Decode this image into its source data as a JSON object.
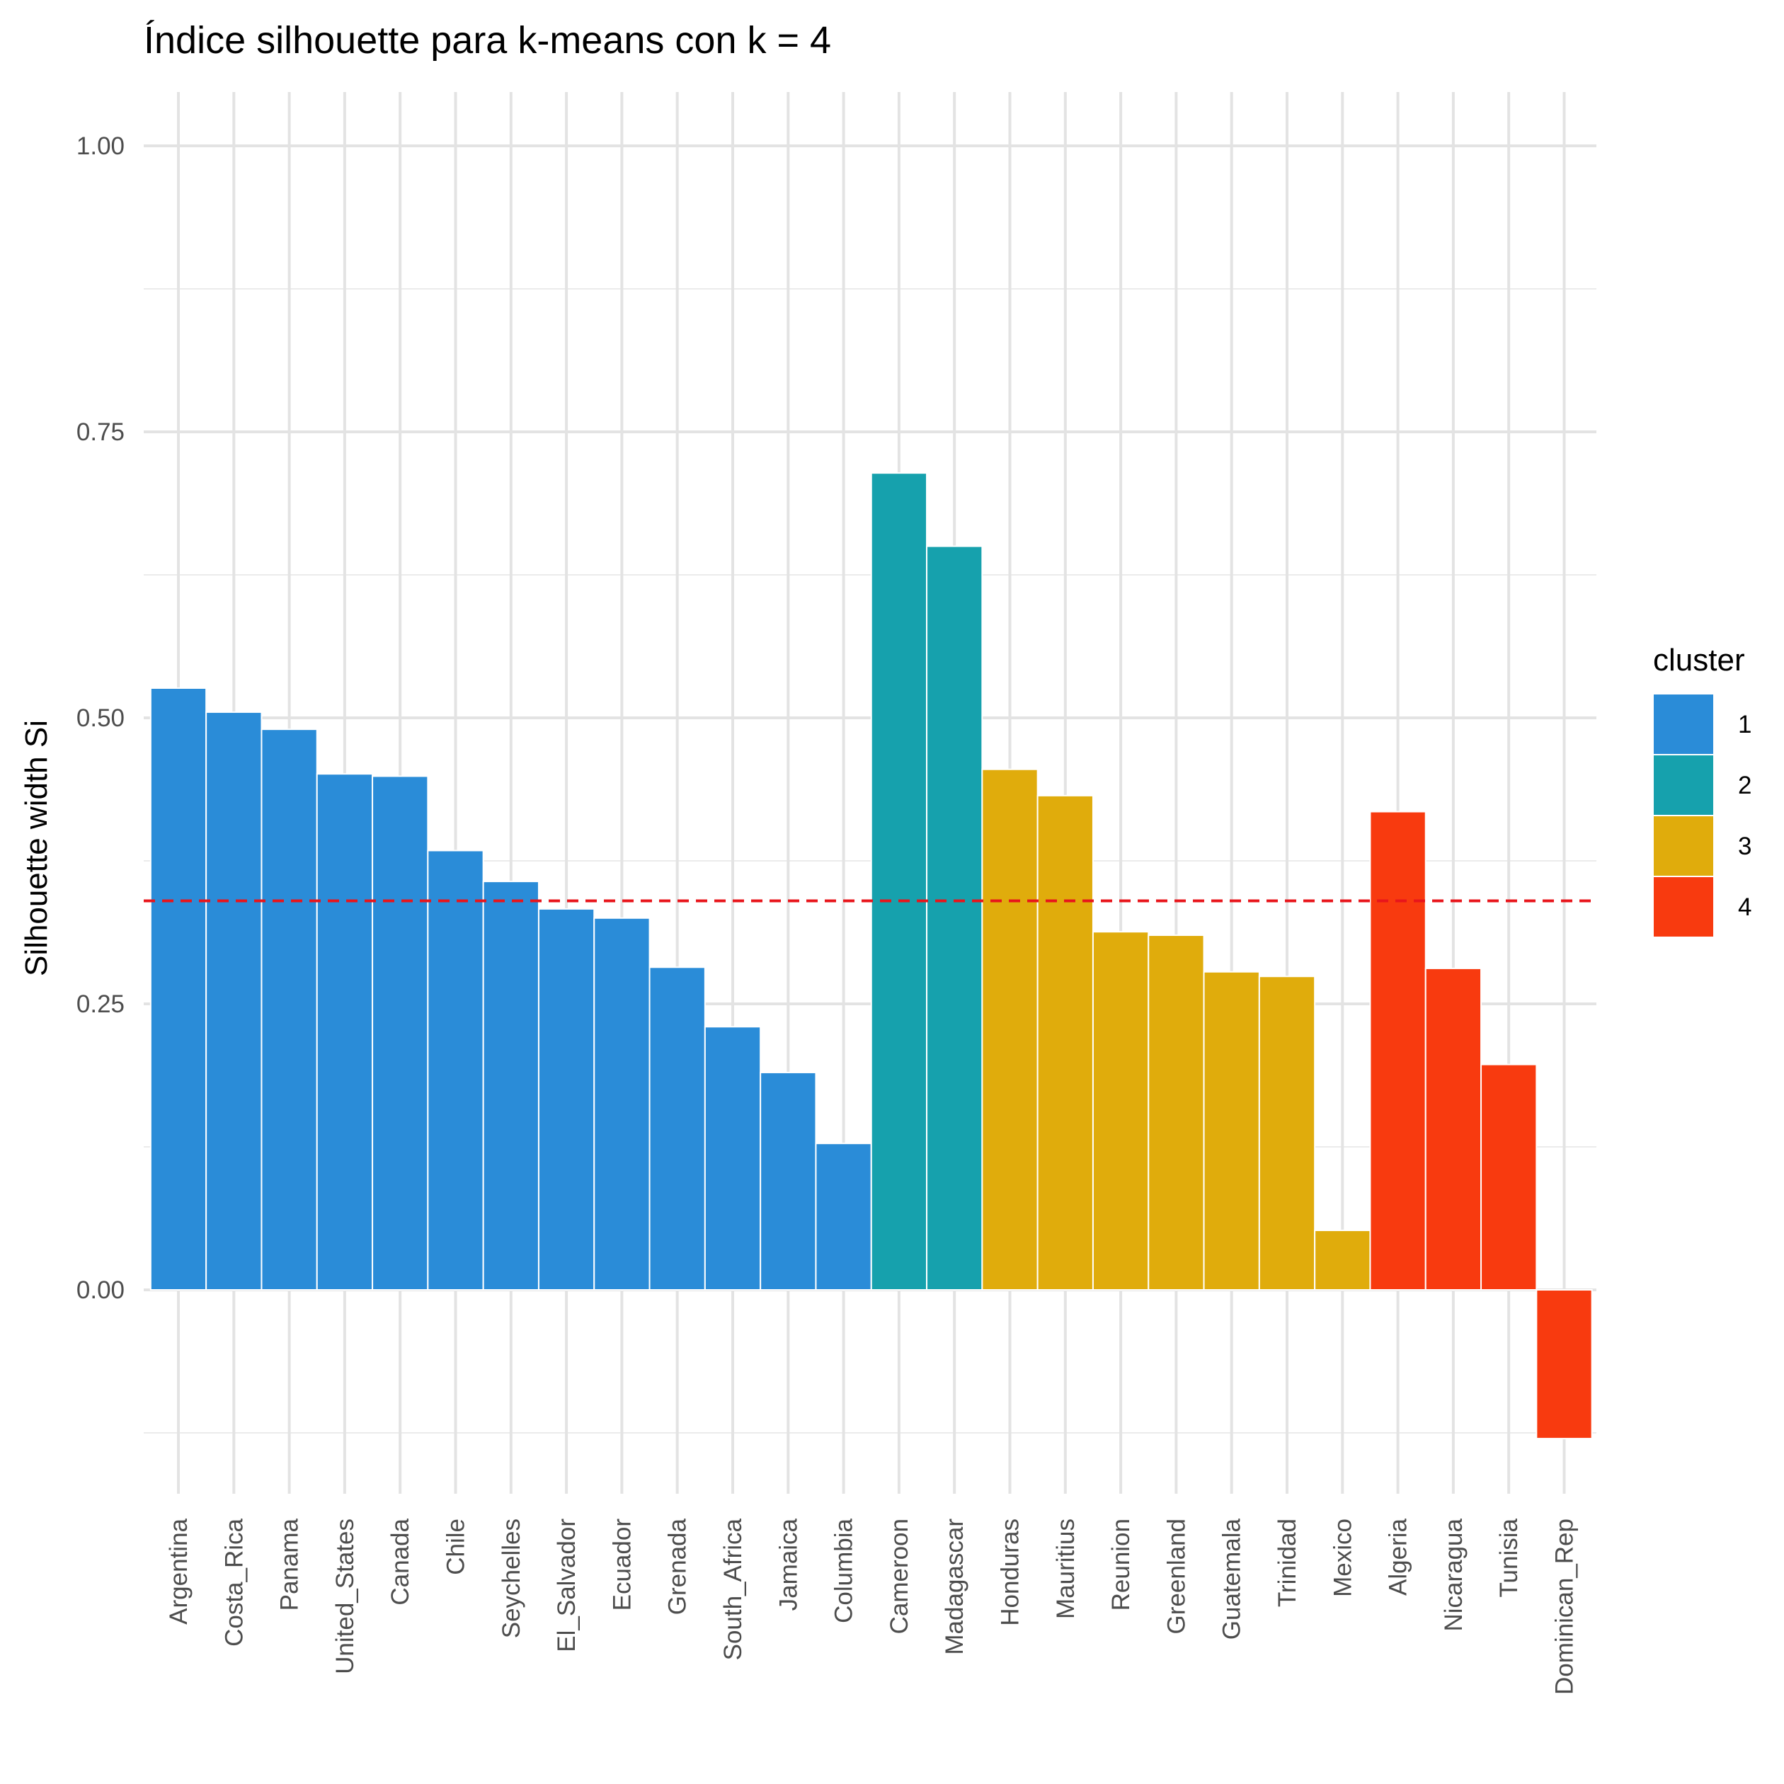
{
  "chart_data": {
    "type": "bar",
    "title": "Índice silhouette para k-means con k = 4",
    "xlabel": "",
    "ylabel": "Silhouette width Si",
    "ylim": [
      -0.18,
      1.05
    ],
    "y_ticks": [
      0.0,
      0.25,
      0.5,
      0.75,
      1.0
    ],
    "y_tick_labels": [
      "0.00",
      "0.25",
      "0.50",
      "0.75",
      "1.00"
    ],
    "grid": true,
    "legend_position": "right",
    "legend_title": "cluster",
    "reference_line": {
      "value": 0.34,
      "style": "dashed",
      "color": "#e8151b"
    },
    "clusters": [
      {
        "id": "1",
        "color": "#2a8cd8"
      },
      {
        "id": "2",
        "color": "#16a1ad"
      },
      {
        "id": "3",
        "color": "#e0ac0c"
      },
      {
        "id": "4",
        "color": "#f83a0f"
      }
    ],
    "categories": [
      "Argentina",
      "Costa_Rica",
      "Panama",
      "United_States",
      "Canada",
      "Chile",
      "Seychelles",
      "El_Salvador",
      "Ecuador",
      "Grenada",
      "South_Africa",
      "Jamaica",
      "Columbia",
      "Cameroon",
      "Madagascar",
      "Honduras",
      "Mauritius",
      "Reunion",
      "Greenland",
      "Guatemala",
      "Trinidad",
      "Mexico",
      "Algeria",
      "Nicaragua",
      "Tunisia",
      "Dominican_Rep"
    ],
    "values": [
      0.526,
      0.505,
      0.49,
      0.451,
      0.449,
      0.384,
      0.357,
      0.333,
      0.325,
      0.282,
      0.23,
      0.19,
      0.128,
      0.714,
      0.65,
      0.455,
      0.432,
      0.313,
      0.31,
      0.278,
      0.274,
      0.052,
      0.418,
      0.281,
      0.197,
      -0.13
    ],
    "cluster_of_bar": [
      "1",
      "1",
      "1",
      "1",
      "1",
      "1",
      "1",
      "1",
      "1",
      "1",
      "1",
      "1",
      "1",
      "2",
      "2",
      "3",
      "3",
      "3",
      "3",
      "3",
      "3",
      "3",
      "4",
      "4",
      "4",
      "4"
    ]
  }
}
